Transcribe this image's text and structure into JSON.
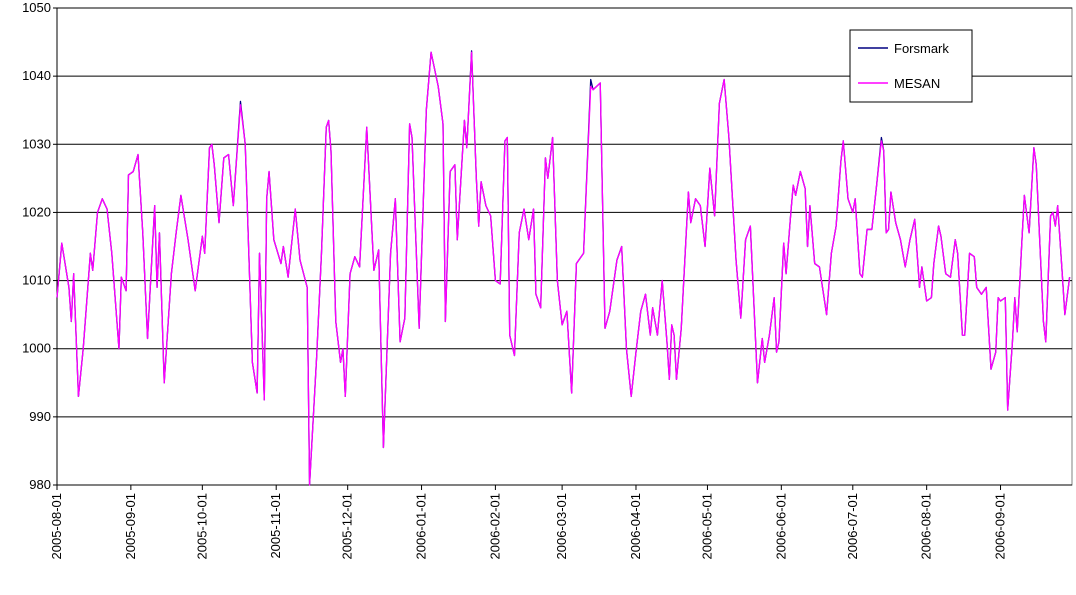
{
  "chart_data": {
    "type": "line",
    "x": [
      "2005-08-01",
      "2005-08-03",
      "2005-08-06",
      "2005-08-07",
      "2005-08-08",
      "2005-08-10",
      "2005-08-12",
      "2005-08-15",
      "2005-08-16",
      "2005-08-18",
      "2005-08-20",
      "2005-08-22",
      "2005-08-24",
      "2005-08-27",
      "2005-08-28",
      "2005-08-30",
      "2005-08-31",
      "2005-09-02",
      "2005-09-04",
      "2005-09-06",
      "2005-09-08",
      "2005-09-11",
      "2005-09-12",
      "2005-09-13",
      "2005-09-15",
      "2005-09-18",
      "2005-09-20",
      "2005-09-22",
      "2005-09-25",
      "2005-09-28",
      "2005-10-01",
      "2005-10-02",
      "2005-10-04",
      "2005-10-05",
      "2005-10-06",
      "2005-10-08",
      "2005-10-10",
      "2005-10-12",
      "2005-10-14",
      "2005-10-17",
      "2005-10-19",
      "2005-10-22",
      "2005-10-24",
      "2005-10-25",
      "2005-10-27",
      "2005-10-28",
      "2005-10-29",
      "2005-10-31",
      "2005-11-03",
      "2005-11-04",
      "2005-11-06",
      "2005-11-09",
      "2005-11-11",
      "2005-11-14",
      "2005-11-15",
      "2005-11-18",
      "2005-11-20",
      "2005-11-22",
      "2005-11-23",
      "2005-11-24",
      "2005-11-26",
      "2005-11-28",
      "2005-11-29",
      "2005-11-30",
      "2005-12-02",
      "2005-12-04",
      "2005-12-06",
      "2005-12-09",
      "2005-12-12",
      "2005-12-14",
      "2005-12-16",
      "2005-12-19",
      "2005-12-21",
      "2005-12-23",
      "2005-12-25",
      "2005-12-27",
      "2005-12-28",
      "2005-12-31",
      "2006-01-03",
      "2006-01-05",
      "2006-01-08",
      "2006-01-10",
      "2006-01-11",
      "2006-01-13",
      "2006-01-15",
      "2006-01-16",
      "2006-01-19",
      "2006-01-20",
      "2006-01-22",
      "2006-01-24",
      "2006-01-25",
      "2006-01-26",
      "2006-01-28",
      "2006-01-30",
      "2006-02-01",
      "2006-02-03",
      "2006-02-05",
      "2006-02-06",
      "2006-02-07",
      "2006-02-09",
      "2006-02-11",
      "2006-02-13",
      "2006-02-15",
      "2006-02-17",
      "2006-02-18",
      "2006-02-20",
      "2006-02-22",
      "2006-02-23",
      "2006-02-25",
      "2006-02-27",
      "2006-03-01",
      "2006-03-03",
      "2006-03-05",
      "2006-03-07",
      "2006-03-10",
      "2006-03-13",
      "2006-03-14",
      "2006-03-17",
      "2006-03-19",
      "2006-03-21",
      "2006-03-24",
      "2006-03-26",
      "2006-03-28",
      "2006-03-30",
      "2006-04-01",
      "2006-04-03",
      "2006-04-05",
      "2006-04-07",
      "2006-04-08",
      "2006-04-10",
      "2006-04-12",
      "2006-04-14",
      "2006-04-15",
      "2006-04-16",
      "2006-04-17",
      "2006-04-18",
      "2006-04-20",
      "2006-04-23",
      "2006-04-24",
      "2006-04-26",
      "2006-04-28",
      "2006-04-30",
      "2006-05-02",
      "2006-05-04",
      "2006-05-06",
      "2006-05-08",
      "2006-05-10",
      "2006-05-13",
      "2006-05-15",
      "2006-05-17",
      "2006-05-19",
      "2006-05-22",
      "2006-05-24",
      "2006-05-25",
      "2006-05-27",
      "2006-05-29",
      "2006-05-30",
      "2006-05-31",
      "2006-06-02",
      "2006-06-03",
      "2006-06-05",
      "2006-06-06",
      "2006-06-07",
      "2006-06-09",
      "2006-06-11",
      "2006-06-12",
      "2006-06-13",
      "2006-06-15",
      "2006-06-17",
      "2006-06-20",
      "2006-06-22",
      "2006-06-24",
      "2006-06-26",
      "2006-06-27",
      "2006-06-29",
      "2006-07-01",
      "2006-07-02",
      "2006-07-04",
      "2006-07-05",
      "2006-07-07",
      "2006-07-09",
      "2006-07-11",
      "2006-07-13",
      "2006-07-14",
      "2006-07-15",
      "2006-07-16",
      "2006-07-17",
      "2006-07-19",
      "2006-07-21",
      "2006-07-23",
      "2006-07-25",
      "2006-07-27",
      "2006-07-29",
      "2006-07-30",
      "2006-08-01",
      "2006-08-03",
      "2006-08-04",
      "2006-08-06",
      "2006-08-07",
      "2006-08-09",
      "2006-08-11",
      "2006-08-13",
      "2006-08-14",
      "2006-08-16",
      "2006-08-17",
      "2006-08-19",
      "2006-08-21",
      "2006-08-22",
      "2006-08-24",
      "2006-08-26",
      "2006-08-28",
      "2006-08-30",
      "2006-08-31",
      "2006-09-01",
      "2006-09-03",
      "2006-09-04",
      "2006-09-06",
      "2006-09-07",
      "2006-09-08",
      "2006-09-10",
      "2006-09-11",
      "2006-09-13",
      "2006-09-15",
      "2006-09-16",
      "2006-09-19",
      "2006-09-20",
      "2006-09-22",
      "2006-09-23",
      "2006-09-24",
      "2006-09-25",
      "2006-09-27",
      "2006-09-28",
      "2006-09-30"
    ],
    "series": [
      {
        "name": "Forsmark",
        "color": "#000080",
        "values": [
          1007.5,
          1015.5,
          1009,
          1004,
          1011,
          993,
          1000,
          1014,
          1011.5,
          1020,
          1022,
          1020.5,
          1014,
          1000,
          1010.5,
          1008.5,
          1025.5,
          1026,
          1028.5,
          1017,
          1001.5,
          1021,
          1009,
          1017,
          995,
          1011,
          1017,
          1022.5,
          1016,
          1008.5,
          1016.5,
          1014,
          1029.5,
          1030,
          1027,
          1018.5,
          1028,
          1028.5,
          1021,
          1036.3,
          1030,
          998,
          993.5,
          1014,
          992.5,
          1022,
          1026,
          1016,
          1012.5,
          1015,
          1010.5,
          1020.5,
          1013,
          1009,
          980,
          999,
          1014,
          1032.5,
          1033.5,
          1029,
          1004,
          998,
          1000,
          993,
          1011,
          1013.5,
          1012,
          1032.5,
          1011.5,
          1014.5,
          985.5,
          1014,
          1022,
          1001,
          1004.5,
          1033,
          1031,
          1003,
          1035,
          1043.5,
          1038.5,
          1033,
          1004,
          1026,
          1027,
          1016,
          1033.5,
          1029.5,
          1043.7,
          1025,
          1018,
          1024.5,
          1021,
          1019.5,
          1010,
          1009.5,
          1030.5,
          1031,
          1002,
          999,
          1017,
          1020.5,
          1016,
          1020.5,
          1008,
          1006,
          1028,
          1025,
          1031,
          1010,
          1003.5,
          1005.5,
          993.5,
          1012.5,
          1014,
          1039.5,
          1038,
          1039,
          1003,
          1005.5,
          1013,
          1015,
          1000,
          993,
          999.5,
          1005.5,
          1008,
          1002,
          1006,
          1002,
          1010,
          1001,
          995.5,
          1003.5,
          1002,
          995.5,
          1003,
          1023,
          1018.5,
          1022,
          1021,
          1015,
          1026.5,
          1019.5,
          1036,
          1039.5,
          1031,
          1013,
          1004.5,
          1016,
          1018,
          995,
          1001.5,
          998,
          1002,
          1007.5,
          999.5,
          1001,
          1015.5,
          1011,
          1020,
          1024,
          1022.5,
          1026,
          1023.5,
          1015,
          1021,
          1012.5,
          1012,
          1005,
          1014,
          1018,
          1027.5,
          1030.5,
          1022,
          1020,
          1022,
          1011,
          1010.5,
          1017.5,
          1017.5,
          1024,
          1031,
          1029,
          1017,
          1017.5,
          1023,
          1018.5,
          1016,
          1012,
          1016,
          1019,
          1009,
          1012,
          1007,
          1007.5,
          1012.5,
          1018,
          1016.5,
          1011,
          1010.5,
          1016,
          1014,
          1002,
          1002,
          1014,
          1013.5,
          1009,
          1008,
          1009,
          997,
          999.5,
          1007.5,
          1007,
          1007.5,
          991,
          1001,
          1007.5,
          1002.5,
          1016,
          1022.5,
          1017,
          1029.5,
          1027,
          1004,
          1001,
          1019.5,
          1020,
          1018,
          1021,
          1010.5,
          1005,
          1010.5
        ]
      },
      {
        "name": "MESAN",
        "color": "#ff00ff",
        "values": [
          1007.5,
          1015.5,
          1009,
          1004,
          1011,
          993,
          1000,
          1014,
          1011.5,
          1020,
          1022,
          1020.5,
          1014,
          1000,
          1010.5,
          1008.5,
          1025.5,
          1026,
          1028.5,
          1017,
          1001.5,
          1021,
          1009,
          1017,
          995,
          1011,
          1017,
          1022.5,
          1016,
          1008.5,
          1016.5,
          1014,
          1029.5,
          1030,
          1027,
          1018.5,
          1028,
          1028.5,
          1021,
          1035.8,
          1030,
          998,
          993.5,
          1014,
          992.5,
          1022,
          1026,
          1016,
          1012.5,
          1015,
          1010.5,
          1020.5,
          1013,
          1009,
          980,
          999,
          1014,
          1032.5,
          1033.5,
          1029,
          1004,
          998,
          1000,
          993,
          1011,
          1013.5,
          1012,
          1032.5,
          1011.5,
          1014.5,
          985.5,
          1014,
          1022,
          1001,
          1004.5,
          1033,
          1031,
          1003,
          1035,
          1043.5,
          1038.5,
          1033,
          1004,
          1026,
          1027,
          1016,
          1033.5,
          1029.5,
          1043.5,
          1025,
          1018,
          1024.5,
          1021,
          1019.5,
          1010,
          1009.5,
          1030.5,
          1031,
          1002,
          999,
          1017,
          1020.5,
          1016,
          1020.5,
          1008,
          1006,
          1028,
          1025,
          1031,
          1010,
          1003.5,
          1005.5,
          993.5,
          1012.5,
          1014,
          1038.5,
          1038,
          1039,
          1003,
          1005.5,
          1013,
          1015,
          1000,
          993,
          999.5,
          1005.5,
          1008,
          1002,
          1006,
          1002,
          1010,
          1001,
          995.5,
          1003.5,
          1002,
          995.5,
          1003,
          1023,
          1018.5,
          1022,
          1021,
          1015,
          1026.5,
          1019.5,
          1036,
          1039.5,
          1031,
          1013,
          1004.5,
          1016,
          1018,
          995,
          1001.5,
          998,
          1002,
          1007.5,
          999.5,
          1001,
          1015.5,
          1011,
          1020,
          1024,
          1022.5,
          1026,
          1023.5,
          1015,
          1021,
          1012.5,
          1012,
          1005,
          1014,
          1018,
          1027.5,
          1030.5,
          1022,
          1020,
          1022,
          1011,
          1010.5,
          1017.5,
          1017.5,
          1024,
          1030.5,
          1029,
          1017,
          1017.5,
          1023,
          1018.5,
          1016,
          1012,
          1016,
          1019,
          1009,
          1012,
          1007,
          1007.5,
          1012.5,
          1018,
          1016.5,
          1011,
          1010.5,
          1016,
          1014,
          1002,
          1002,
          1014,
          1013.5,
          1009,
          1008,
          1009,
          997,
          999.5,
          1007.5,
          1007,
          1007.5,
          991,
          1001,
          1007.5,
          1002.5,
          1016,
          1022.5,
          1017,
          1029.5,
          1027,
          1004,
          1001,
          1019.5,
          1020,
          1018,
          1021,
          1010.5,
          1005,
          1010.5
        ]
      }
    ],
    "xlim": [
      "2005-08-01",
      "2006-10-01"
    ],
    "xticks": [
      "2005-08-01",
      "2005-09-01",
      "2005-10-01",
      "2005-11-01",
      "2005-12-01",
      "2006-01-01",
      "2006-02-01",
      "2006-03-01",
      "2006-04-01",
      "2006-05-01",
      "2006-06-01",
      "2006-07-01",
      "2006-08-01",
      "2006-09-01"
    ],
    "ylim": [
      980,
      1050
    ],
    "yticks": [
      980,
      990,
      1000,
      1010,
      1020,
      1030,
      1040,
      1050
    ],
    "grid": true,
    "legend": "upper-right"
  }
}
